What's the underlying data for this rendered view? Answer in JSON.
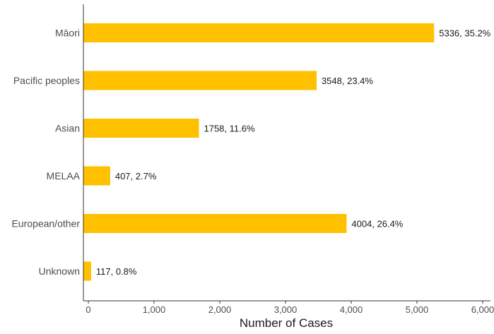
{
  "chart_data": {
    "type": "bar",
    "orientation": "horizontal",
    "categories": [
      "Māori",
      "Pacific peoples",
      "Asian",
      "MELAA",
      "European/other",
      "Unknown"
    ],
    "values": [
      5336,
      3548,
      1758,
      407,
      4004,
      117
    ],
    "data_labels": [
      "5336, 35.2%",
      "3548, 23.4%",
      "1758, 11.6%",
      "407, 2.7%",
      "4004, 26.4%",
      "117, 0.8%"
    ],
    "percentages": [
      35.2,
      23.4,
      11.6,
      2.7,
      26.4,
      0.8
    ],
    "xlabel": "Number of Cases",
    "ylabel": "",
    "xlim": [
      0,
      6000
    ],
    "xticks": [
      0,
      1000,
      2000,
      3000,
      4000,
      5000,
      6000
    ],
    "xtick_labels": [
      "0",
      "1,000",
      "2,000",
      "3,000",
      "4,000",
      "5,000",
      "6,000"
    ],
    "bar_color": "#FFC000",
    "grid": false,
    "legend": "none"
  }
}
